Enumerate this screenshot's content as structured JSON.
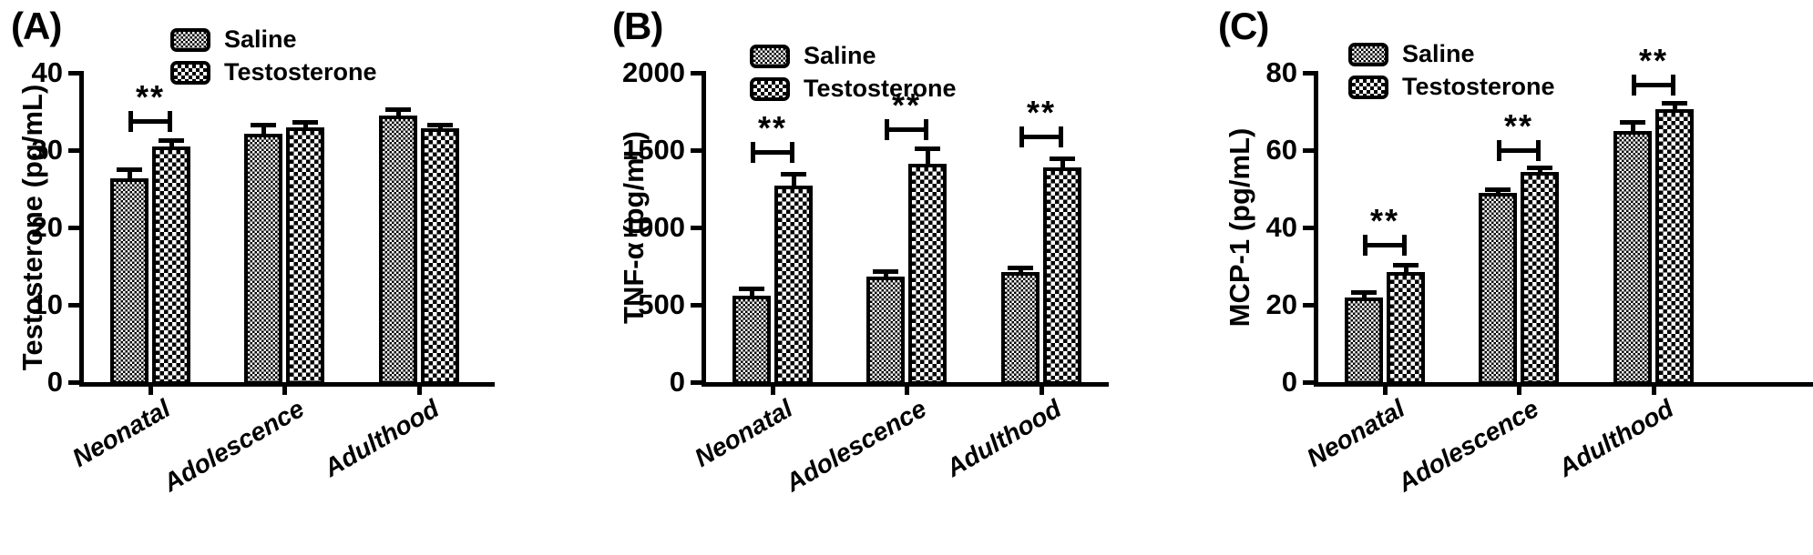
{
  "figure": {
    "background": "#ffffff",
    "foreground": "#000000",
    "panel_labels": [
      "(A)",
      "(B)",
      "(C)"
    ]
  },
  "legend": {
    "position": "top-left-inside",
    "items": [
      {
        "label": "Saline",
        "pattern": "fine-checker-swatch"
      },
      {
        "label": "Testosterone",
        "pattern": "coarse-checker-swatch"
      }
    ]
  },
  "chart_data": [
    {
      "type": "bar",
      "panel_label": "(A)",
      "title": "",
      "xlabel": "",
      "ylabel": "Testosterone (pg/mL)",
      "ylim": [
        0,
        40
      ],
      "yticks": [
        0,
        10,
        20,
        30,
        40
      ],
      "grid": false,
      "legend_position": "top-left-inside",
      "categories": [
        "Neonatal",
        "Adolescence",
        "Adulthood"
      ],
      "series": [
        {
          "name": "Saline",
          "pattern": "fine-checker",
          "values": [
            26.3,
            32.1,
            34.5
          ],
          "errors": [
            1.2,
            1.2,
            0.8
          ]
        },
        {
          "name": "Testosterone",
          "pattern": "coarse-checker",
          "values": [
            30.5,
            33.0,
            32.8
          ],
          "errors": [
            0.8,
            0.6,
            0.5
          ]
        }
      ],
      "significance": [
        {
          "category_index": 0,
          "label": "**",
          "bracket_y": 34
        }
      ]
    },
    {
      "type": "bar",
      "panel_label": "(B)",
      "title": "",
      "xlabel": "",
      "ylabel": "TNF-α (pg/mL)",
      "ylim": [
        0,
        2000
      ],
      "yticks": [
        0,
        500,
        1000,
        1500,
        2000
      ],
      "grid": false,
      "legend_position": "top-left-inside",
      "categories": [
        "Neonatal",
        "Adolescence",
        "Adulthood"
      ],
      "series": [
        {
          "name": "Saline",
          "pattern": "fine-checker",
          "values": [
            560,
            680,
            710
          ],
          "errors": [
            45,
            35,
            30
          ]
        },
        {
          "name": "Testosterone",
          "pattern": "coarse-checker",
          "values": [
            1270,
            1410,
            1390
          ],
          "errors": [
            75,
            100,
            60
          ]
        }
      ],
      "significance": [
        {
          "category_index": 0,
          "label": "**",
          "bracket_y": 1500
        },
        {
          "category_index": 1,
          "label": "**",
          "bracket_y": 1650
        },
        {
          "category_index": 2,
          "label": "**",
          "bracket_y": 1600
        }
      ]
    },
    {
      "type": "bar",
      "panel_label": "(C)",
      "title": "",
      "xlabel": "",
      "ylabel": "MCP-1 (pg/mL)",
      "ylim": [
        0,
        80
      ],
      "yticks": [
        0,
        20,
        40,
        60,
        80
      ],
      "grid": false,
      "legend_position": "top-left-inside",
      "categories": [
        "Neonatal",
        "Adolescence",
        "Adulthood"
      ],
      "series": [
        {
          "name": "Saline",
          "pattern": "fine-checker",
          "values": [
            22,
            49,
            65
          ],
          "errors": [
            1.2,
            1.0,
            2.3
          ]
        },
        {
          "name": "Testosterone",
          "pattern": "coarse-checker",
          "values": [
            28.5,
            54.3,
            70.5
          ],
          "errors": [
            1.8,
            1.2,
            1.8
          ]
        }
      ],
      "significance": [
        {
          "category_index": 0,
          "label": "**",
          "bracket_y": 36
        },
        {
          "category_index": 1,
          "label": "**",
          "bracket_y": 60.5
        },
        {
          "category_index": 2,
          "label": "**",
          "bracket_y": 77.5
        }
      ]
    }
  ]
}
